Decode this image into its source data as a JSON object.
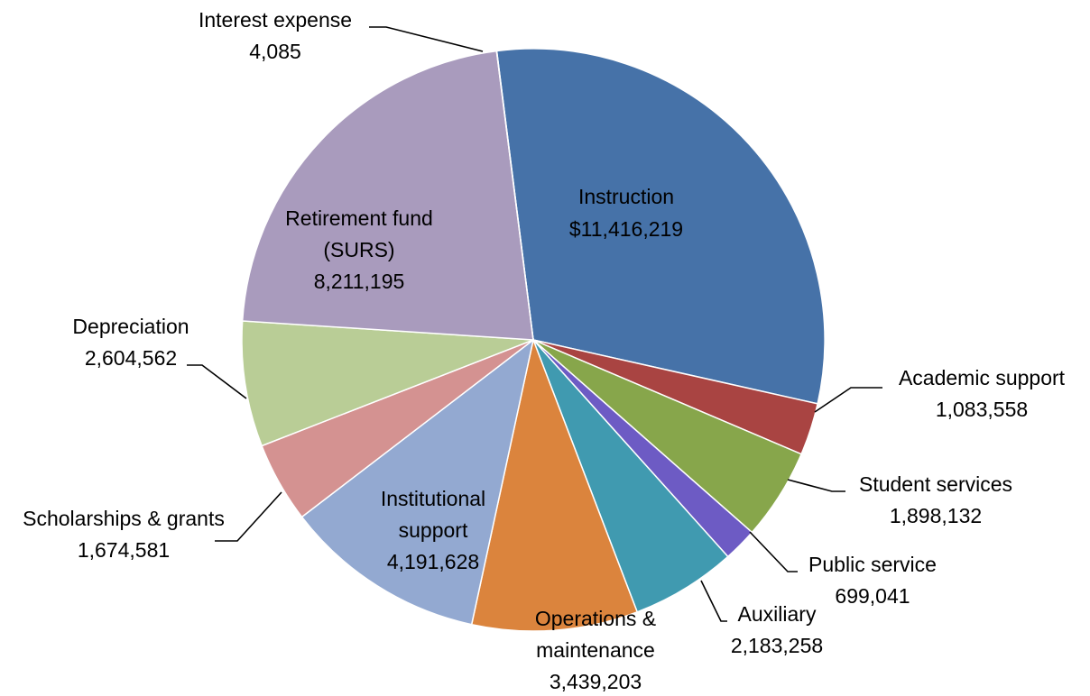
{
  "chart_data": {
    "type": "pie",
    "title": "",
    "start_angle_deg": -97.2,
    "direction": "clockwise",
    "legend": "none",
    "slices": [
      {
        "name": "Instruction",
        "value": 11416219,
        "value_label": "$11,416,219",
        "color": "#4672A8"
      },
      {
        "name": "Academic support",
        "value": 1083558,
        "value_label": "1,083,558",
        "color": "#A94442"
      },
      {
        "name": "Student services",
        "value": 1898132,
        "value_label": "1,898,132",
        "color": "#87A64B"
      },
      {
        "name": "Public service",
        "value": 699041,
        "value_label": "699,041",
        "color": "#6D5BC4"
      },
      {
        "name": "Auxiliary",
        "value": 2183258,
        "value_label": "2,183,258",
        "color": "#409AB0"
      },
      {
        "name": "Operations & maintenance",
        "value": 3439203,
        "value_label": "3,439,203",
        "color": "#DB843D"
      },
      {
        "name": "Institutional support",
        "value": 4191628,
        "value_label": "4,191,628",
        "color": "#93A9D1"
      },
      {
        "name": "Scholarships & grants",
        "value": 1674581,
        "value_label": "1,674,581",
        "color": "#D49291"
      },
      {
        "name": "Depreciation",
        "value": 2604562,
        "value_label": "2,604,562",
        "color": "#B9CD96"
      },
      {
        "name": "Retirement fund (SURS)",
        "value": 8211195,
        "value_label": "8,211,195",
        "color": "#A99BBD"
      },
      {
        "name": "Interest expense",
        "value": 4085,
        "value_label": "4,085",
        "color": "#A99BBD"
      }
    ]
  }
}
